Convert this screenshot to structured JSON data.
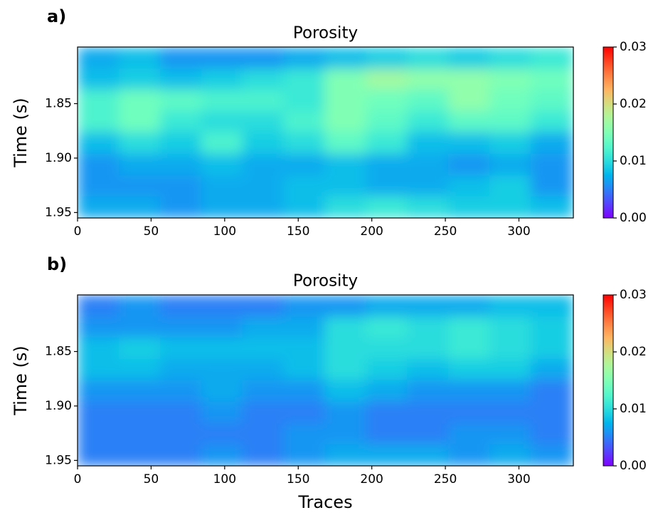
{
  "chart_data": [
    {
      "type": "heatmap",
      "panel_label": "a)",
      "title": "Porosity",
      "ylabel": "Time (s)",
      "xlim": [
        0,
        337
      ],
      "xticks": [
        0,
        50,
        100,
        150,
        200,
        250,
        300
      ],
      "ylim": [
        1.955,
        1.798
      ],
      "yticks": [
        1.85,
        {
          "value": 1.9,
          "label": "1.90"
        },
        1.95
      ],
      "x_bins": [
        0,
        28,
        56,
        84,
        112,
        140,
        168,
        196,
        224,
        252,
        280,
        308,
        337
      ],
      "y_bins": [
        1.798,
        1.818,
        1.837,
        1.857,
        1.876,
        1.896,
        1.916,
        1.935,
        1.955
      ],
      "z": [
        [
          0.007,
          0.008,
          0.006,
          0.006,
          0.006,
          0.007,
          0.008,
          0.009,
          0.01,
          0.009,
          0.01,
          0.011
        ],
        [
          0.008,
          0.009,
          0.008,
          0.009,
          0.01,
          0.011,
          0.015,
          0.017,
          0.016,
          0.016,
          0.015,
          0.014
        ],
        [
          0.012,
          0.014,
          0.013,
          0.012,
          0.012,
          0.011,
          0.015,
          0.014,
          0.013,
          0.016,
          0.014,
          0.013
        ],
        [
          0.012,
          0.014,
          0.011,
          0.01,
          0.01,
          0.012,
          0.015,
          0.013,
          0.011,
          0.013,
          0.013,
          0.011
        ],
        [
          0.008,
          0.01,
          0.009,
          0.012,
          0.009,
          0.01,
          0.013,
          0.011,
          0.008,
          0.008,
          0.009,
          0.007
        ],
        [
          0.006,
          0.007,
          0.007,
          0.008,
          0.007,
          0.007,
          0.008,
          0.007,
          0.007,
          0.006,
          0.007,
          0.006
        ],
        [
          0.006,
          0.006,
          0.006,
          0.007,
          0.007,
          0.008,
          0.008,
          0.007,
          0.007,
          0.008,
          0.009,
          0.006
        ],
        [
          0.007,
          0.007,
          0.006,
          0.007,
          0.007,
          0.008,
          0.01,
          0.011,
          0.01,
          0.009,
          0.009,
          0.008
        ]
      ],
      "colormap": "rainbow",
      "zlim": [
        0,
        0.03
      ],
      "colorbar_ticks": [
        {
          "value": 0,
          "label": "0.00"
        },
        0.01,
        0.02,
        0.03
      ]
    },
    {
      "type": "heatmap",
      "panel_label": "b)",
      "title": "Porosity",
      "ylabel": "Time (s)",
      "xlabel": "Traces",
      "xlim": [
        0,
        337
      ],
      "xticks": [
        0,
        50,
        100,
        150,
        200,
        250,
        300
      ],
      "ylim": [
        1.955,
        1.798
      ],
      "yticks": [
        1.85,
        {
          "value": 1.9,
          "label": "1.90"
        },
        1.95
      ],
      "x_bins": [
        0,
        28,
        56,
        84,
        112,
        140,
        168,
        196,
        224,
        252,
        280,
        308,
        337
      ],
      "y_bins": [
        1.798,
        1.818,
        1.837,
        1.857,
        1.876,
        1.896,
        1.916,
        1.935,
        1.955
      ],
      "z": [
        [
          0.005,
          0.006,
          0.005,
          0.005,
          0.005,
          0.006,
          0.006,
          0.007,
          0.007,
          0.007,
          0.008,
          0.008
        ],
        [
          0.006,
          0.006,
          0.006,
          0.006,
          0.007,
          0.007,
          0.01,
          0.011,
          0.01,
          0.011,
          0.01,
          0.009
        ],
        [
          0.008,
          0.009,
          0.008,
          0.008,
          0.008,
          0.008,
          0.01,
          0.01,
          0.01,
          0.011,
          0.01,
          0.009
        ],
        [
          0.008,
          0.008,
          0.007,
          0.007,
          0.007,
          0.008,
          0.01,
          0.009,
          0.008,
          0.009,
          0.009,
          0.007
        ],
        [
          0.006,
          0.006,
          0.006,
          0.007,
          0.006,
          0.006,
          0.008,
          0.007,
          0.006,
          0.006,
          0.006,
          0.005
        ],
        [
          0.005,
          0.005,
          0.005,
          0.006,
          0.005,
          0.005,
          0.006,
          0.005,
          0.005,
          0.005,
          0.005,
          0.005
        ],
        [
          0.005,
          0.005,
          0.005,
          0.005,
          0.005,
          0.006,
          0.006,
          0.005,
          0.005,
          0.006,
          0.006,
          0.005
        ],
        [
          0.005,
          0.005,
          0.005,
          0.006,
          0.005,
          0.006,
          0.007,
          0.007,
          0.007,
          0.006,
          0.007,
          0.006
        ]
      ],
      "colormap": "rainbow",
      "zlim": [
        0,
        0.03
      ],
      "colorbar_ticks": [
        {
          "value": 0,
          "label": "0.00"
        },
        0.01,
        0.02,
        0.03
      ]
    }
  ]
}
